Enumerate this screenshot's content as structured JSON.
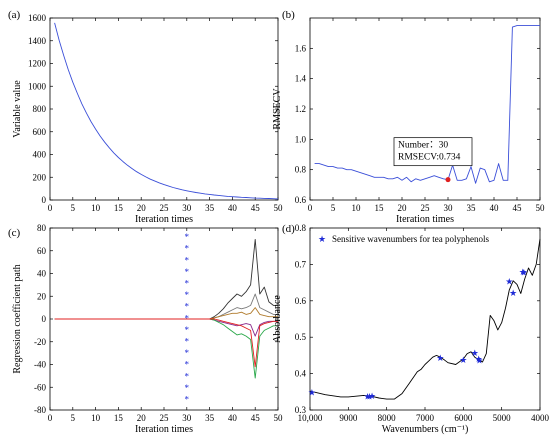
{
  "chart_data": [
    {
      "panel_label": "(a)",
      "type": "line",
      "xlabel": "Iteration times",
      "ylabel": "Variable value",
      "xlim": [
        0,
        50
      ],
      "ylim": [
        0,
        1600
      ],
      "xticks": [
        "0",
        "5",
        "10",
        "15",
        "20",
        "25",
        "30",
        "35",
        "40",
        "45",
        "50"
      ],
      "yticks": [
        "0",
        "200",
        "400",
        "600",
        "800",
        "1000",
        "1200",
        "1400",
        "1600"
      ],
      "line_color": "#3b4fd8",
      "x": [
        1,
        2,
        3,
        4,
        5,
        6,
        7,
        8,
        9,
        10,
        11,
        12,
        13,
        14,
        15,
        16,
        17,
        18,
        19,
        20,
        21,
        22,
        23,
        24,
        25,
        26,
        27,
        28,
        29,
        30,
        31,
        32,
        33,
        34,
        35,
        36,
        37,
        38,
        39,
        40,
        41,
        42,
        43,
        44,
        45,
        46,
        47,
        48,
        49,
        50
      ],
      "y": [
        1557,
        1406,
        1270,
        1147,
        1036,
        936,
        845,
        763,
        689,
        623,
        562,
        508,
        459,
        414,
        374,
        338,
        305,
        276,
        249,
        225,
        203,
        183,
        166,
        150,
        135,
        122,
        110,
        99,
        90,
        81,
        73,
        66,
        60,
        54,
        49,
        44,
        40,
        36,
        32,
        29,
        26,
        24,
        22,
        19,
        17,
        16,
        14,
        13,
        11,
        10
      ]
    },
    {
      "panel_label": "(b)",
      "type": "line",
      "xlabel": "Iteration times",
      "ylabel": "RMSECV",
      "xlim": [
        0,
        50
      ],
      "ylim": [
        0.6,
        1.8
      ],
      "xticks": [
        "0",
        "5",
        "10",
        "15",
        "20",
        "25",
        "30",
        "35",
        "40",
        "45",
        "50"
      ],
      "yticks": [
        "0.6",
        "0.8",
        "1.0",
        "1.2",
        "1.4",
        "1.6"
      ],
      "line_color": "#3b4fd8",
      "x": [
        1,
        2,
        3,
        4,
        5,
        6,
        7,
        8,
        9,
        10,
        11,
        12,
        13,
        14,
        15,
        16,
        17,
        18,
        19,
        20,
        21,
        22,
        23,
        24,
        25,
        26,
        27,
        28,
        29,
        30,
        31,
        32,
        33,
        34,
        35,
        36,
        37,
        38,
        39,
        40,
        41,
        42,
        43,
        44,
        45,
        46,
        47,
        48,
        49,
        50
      ],
      "y": [
        0.84,
        0.84,
        0.83,
        0.82,
        0.82,
        0.81,
        0.81,
        0.8,
        0.8,
        0.79,
        0.78,
        0.77,
        0.76,
        0.75,
        0.75,
        0.75,
        0.74,
        0.74,
        0.75,
        0.73,
        0.75,
        0.72,
        0.74,
        0.73,
        0.74,
        0.75,
        0.76,
        0.75,
        0.74,
        0.734,
        0.83,
        0.73,
        0.73,
        0.74,
        0.82,
        0.71,
        0.81,
        0.8,
        0.72,
        0.73,
        0.84,
        0.73,
        0.73,
        1.74,
        1.75,
        1.75,
        1.75,
        1.75,
        1.75,
        1.75
      ],
      "highlight": {
        "x": 30,
        "y": 0.734,
        "color": "#e02020"
      },
      "annotation": {
        "line1": "Number：30",
        "line2": "RMSECV:0.734"
      }
    },
    {
      "panel_label": "(c)",
      "type": "line",
      "xlabel": "Iteration times",
      "ylabel": "Regression coefficient path",
      "xlim": [
        0,
        50
      ],
      "ylim": [
        -80,
        80
      ],
      "xticks": [
        "0",
        "5",
        "10",
        "15",
        "20",
        "25",
        "30",
        "35",
        "40",
        "45",
        "50"
      ],
      "yticks": [
        "-80",
        "-60",
        "-40",
        "-20",
        "0",
        "20",
        "40",
        "60",
        "80"
      ],
      "marker_x": 30,
      "marker_color": "#3b4fd8",
      "marker_count": 15,
      "x": [
        1,
        35,
        36,
        37,
        38,
        39,
        40,
        41,
        42,
        43,
        44,
        45,
        46,
        47,
        48,
        49,
        50
      ],
      "series": [
        {
          "color": "#333333",
          "values": [
            0,
            0,
            2,
            5,
            9,
            14,
            18,
            22,
            20,
            24,
            30,
            70,
            22,
            28,
            15,
            12,
            12
          ]
        },
        {
          "color": "#7a7a7a",
          "values": [
            0,
            0,
            1,
            2,
            4,
            6,
            8,
            10,
            9,
            10,
            12,
            22,
            10,
            8,
            6,
            4,
            4
          ]
        },
        {
          "color": "#b07a2a",
          "values": [
            0,
            0,
            1,
            2,
            3,
            4,
            5,
            5,
            6,
            4,
            5,
            10,
            4,
            3,
            2,
            2,
            2
          ]
        },
        {
          "color": "#8b2a8b",
          "values": [
            0,
            0,
            -1,
            -2,
            -3,
            -4,
            -5,
            -6,
            -5,
            -4,
            -5,
            -15,
            -5,
            -3,
            -2,
            -2,
            -2
          ]
        },
        {
          "color": "#2aa84a",
          "values": [
            0,
            0,
            -1,
            -3,
            -5,
            -8,
            -11,
            -14,
            -13,
            -15,
            -18,
            -52,
            -15,
            -10,
            -8,
            -6,
            -6
          ]
        },
        {
          "color": "#e02020",
          "values": [
            0,
            0,
            0,
            -1,
            -2,
            -3,
            -4,
            -5,
            -6,
            -8,
            -10,
            -42,
            -6,
            -4,
            -3,
            -2,
            -2
          ]
        }
      ]
    },
    {
      "panel_label": "(d)",
      "type": "line",
      "xlabel": "Wavenumbers (cm⁻¹)",
      "ylabel": "Absorbance",
      "xlim": [
        10000,
        4000
      ],
      "ylim": [
        0.3,
        0.8
      ],
      "xticks": [
        "10,000",
        "9000",
        "8000",
        "7000",
        "6000",
        "5000",
        "4000"
      ],
      "yticks": [
        "0.3",
        "0.4",
        "0.5",
        "0.6",
        "0.7",
        "0.8"
      ],
      "line_color": "#000000",
      "legend": {
        "label": "Sensitive wavenumbers for tea polyphenols",
        "position": "top-left",
        "color": "#1f2bd6"
      },
      "x": [
        10000,
        9600,
        9200,
        9000,
        8800,
        8600,
        8400,
        8200,
        8000,
        7800,
        7600,
        7400,
        7300,
        7200,
        7100,
        7000,
        6900,
        6800,
        6700,
        6600,
        6500,
        6400,
        6200,
        6000,
        5900,
        5800,
        5700,
        5600,
        5500,
        5400,
        5300,
        5200,
        5100,
        5000,
        4900,
        4800,
        4700,
        4600,
        4500,
        4400,
        4300,
        4200,
        4100,
        4000
      ],
      "y": [
        0.352,
        0.342,
        0.336,
        0.336,
        0.338,
        0.34,
        0.338,
        0.333,
        0.33,
        0.33,
        0.345,
        0.375,
        0.39,
        0.405,
        0.412,
        0.425,
        0.435,
        0.445,
        0.45,
        0.445,
        0.438,
        0.43,
        0.425,
        0.44,
        0.455,
        0.46,
        0.445,
        0.438,
        0.432,
        0.455,
        0.56,
        0.545,
        0.52,
        0.54,
        0.58,
        0.63,
        0.655,
        0.645,
        0.62,
        0.66,
        0.69,
        0.67,
        0.7,
        0.77
      ],
      "markers": {
        "x": [
          9950,
          8500,
          8450,
          8380,
          6600,
          6000,
          5700,
          5600,
          5580,
          4800,
          4700,
          4450,
          4420
        ],
        "y": [
          0.35,
          0.338,
          0.339,
          0.34,
          0.444,
          0.439,
          0.458,
          0.441,
          0.437,
          0.655,
          0.623,
          0.681,
          0.679
        ]
      }
    }
  ]
}
